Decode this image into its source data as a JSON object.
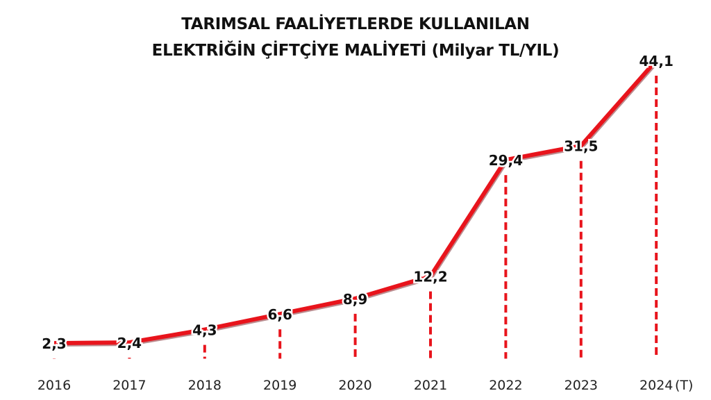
{
  "chart_data": {
    "type": "line",
    "title_lines": [
      "TARIMSAL FAALİYETLERDE KULLANILAN",
      "ELEKTRİĞİN ÇİFTÇİYE MALİYETİ (Milyar TL/YIL)"
    ],
    "categories": [
      "2016",
      "2017",
      "2018",
      "2019",
      "2020",
      "2021",
      "2022",
      "2023",
      "2024"
    ],
    "last_category_suffix": "(T)",
    "values": [
      2.3,
      2.4,
      4.3,
      6.6,
      8.9,
      12.2,
      29.4,
      31.5,
      44.1
    ],
    "data_labels": [
      "2,3",
      "2,4",
      "4,3",
      "6,6",
      "8,9",
      "12,2",
      "29,4",
      "31,5",
      "44,1"
    ],
    "ylim": [
      0,
      44.1
    ],
    "grid": false,
    "xlabel": "",
    "ylabel": "",
    "colors": {
      "line": "#e8141c",
      "text": "#111111"
    }
  }
}
